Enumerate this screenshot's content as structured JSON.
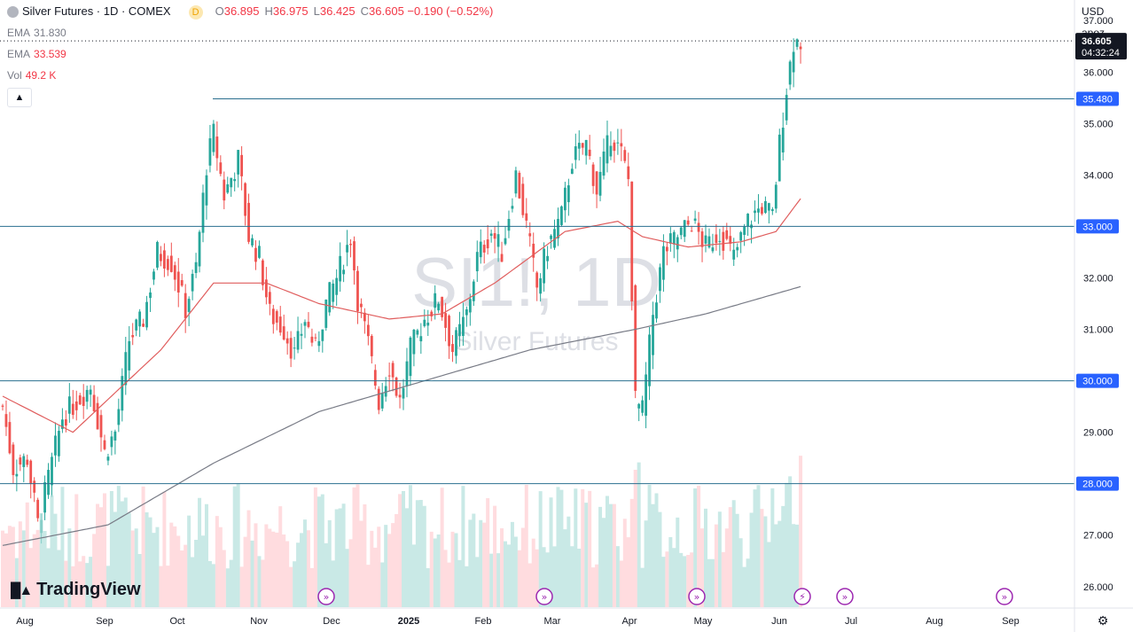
{
  "header": {
    "title": "Silver Futures · 1D · COMEX",
    "interval_badge": "D",
    "ohlc": [
      {
        "label": "O",
        "value": "36.895"
      },
      {
        "label": "H",
        "value": "36.975"
      },
      {
        "label": "L",
        "value": "36.425"
      },
      {
        "label": "C",
        "value": "36.605"
      }
    ],
    "change": "−0.190 (−0.52%)"
  },
  "indicators": [
    {
      "name": "EMA",
      "value": "31.830",
      "color": "#787b86"
    },
    {
      "name": "EMA",
      "value": "33.539",
      "color": "#f23645"
    },
    {
      "name": "Vol",
      "value": "49.2 K",
      "color": "#f23645"
    }
  ],
  "controls": {
    "currency": "USD",
    "scale_mode": "apoz",
    "collapse_icon": "chevron-up-icon"
  },
  "watermark": {
    "symbol": "SI1!, 1D",
    "name": "Silver Futures"
  },
  "logo": {
    "text": "TradingView"
  },
  "colors": {
    "up": "#26a69a",
    "down": "#ef5350",
    "volume_up": "#b2dfdb",
    "volume_down": "#ffcdd2",
    "ema_long": "#787b86",
    "ema_short": "#e05d5d",
    "level_line": "#2a6f8f",
    "badge": "#131722",
    "level_badge": "#2962ff"
  },
  "chart_data": {
    "type": "candlestick",
    "y_axis": {
      "ticks": [
        "37.000",
        "36.000",
        "35.000",
        "34.000",
        "33.000",
        "32.000",
        "31.000",
        "30.000",
        "29.000",
        "28.000",
        "27.000",
        "26.000"
      ],
      "range": [
        25.6,
        37.4
      ]
    },
    "x_axis": {
      "ticks": [
        "Aug",
        "Sep",
        "Oct",
        "Nov",
        "Dec",
        "2025",
        "Feb",
        "Mar",
        "Apr",
        "May",
        "Jun",
        "Jul",
        "Aug",
        "Sep"
      ]
    },
    "price_badge": {
      "price": "36.605",
      "countdown": "04:32:24"
    },
    "levels": [
      {
        "price": 35.48,
        "label": "35.480",
        "from": "Oct"
      },
      {
        "price": 33.0,
        "label": "33.000",
        "from": "start"
      },
      {
        "price": 30.0,
        "label": "30.000",
        "from": "start"
      },
      {
        "price": 28.0,
        "label": "28.000",
        "from": "start"
      }
    ],
    "close_anchors": [
      {
        "i": 0,
        "c": 29.5
      },
      {
        "i": 3,
        "c": 28.3
      },
      {
        "i": 7,
        "c": 28.5
      },
      {
        "i": 10,
        "c": 27.2
      },
      {
        "i": 14,
        "c": 28.4
      },
      {
        "i": 17,
        "c": 29.3
      },
      {
        "i": 21,
        "c": 29.6
      },
      {
        "i": 25,
        "c": 29.9
      },
      {
        "i": 29,
        "c": 28.6
      },
      {
        "i": 32,
        "c": 29.0
      },
      {
        "i": 36,
        "c": 30.8
      },
      {
        "i": 40,
        "c": 31.2
      },
      {
        "i": 44,
        "c": 32.5
      },
      {
        "i": 48,
        "c": 32.3
      },
      {
        "i": 52,
        "c": 31.4
      },
      {
        "i": 55,
        "c": 32.2
      },
      {
        "i": 58,
        "c": 34.2
      },
      {
        "i": 60,
        "c": 34.8
      },
      {
        "i": 63,
        "c": 33.6
      },
      {
        "i": 67,
        "c": 34.3
      },
      {
        "i": 70,
        "c": 32.8
      },
      {
        "i": 73,
        "c": 32.4
      },
      {
        "i": 76,
        "c": 31.3
      },
      {
        "i": 80,
        "c": 31.0
      },
      {
        "i": 83,
        "c": 30.5
      },
      {
        "i": 86,
        "c": 31.2
      },
      {
        "i": 89,
        "c": 30.6
      },
      {
        "i": 92,
        "c": 31.5
      },
      {
        "i": 95,
        "c": 32.0
      },
      {
        "i": 99,
        "c": 32.8
      },
      {
        "i": 101,
        "c": 31.6
      },
      {
        "i": 104,
        "c": 30.7
      },
      {
        "i": 107,
        "c": 29.6
      },
      {
        "i": 110,
        "c": 30.3
      },
      {
        "i": 113,
        "c": 29.6
      },
      {
        "i": 116,
        "c": 30.6
      },
      {
        "i": 120,
        "c": 31.2
      },
      {
        "i": 124,
        "c": 31.6
      },
      {
        "i": 128,
        "c": 30.6
      },
      {
        "i": 132,
        "c": 31.3
      },
      {
        "i": 135,
        "c": 32.4
      },
      {
        "i": 139,
        "c": 32.9
      },
      {
        "i": 142,
        "c": 32.5
      },
      {
        "i": 146,
        "c": 34.0
      },
      {
        "i": 149,
        "c": 33.0
      },
      {
        "i": 152,
        "c": 31.8
      },
      {
        "i": 155,
        "c": 32.6
      },
      {
        "i": 159,
        "c": 33.2
      },
      {
        "i": 162,
        "c": 34.3
      },
      {
        "i": 166,
        "c": 34.6
      },
      {
        "i": 169,
        "c": 33.7
      },
      {
        "i": 173,
        "c": 34.8
      },
      {
        "i": 176,
        "c": 34.4
      },
      {
        "i": 178,
        "c": 33.9
      },
      {
        "i": 180,
        "c": 29.6
      },
      {
        "i": 182,
        "c": 29.4
      },
      {
        "i": 185,
        "c": 31.3
      },
      {
        "i": 188,
        "c": 32.5
      },
      {
        "i": 192,
        "c": 32.8
      },
      {
        "i": 196,
        "c": 33.1
      },
      {
        "i": 200,
        "c": 32.6
      },
      {
        "i": 204,
        "c": 32.9
      },
      {
        "i": 208,
        "c": 32.4
      },
      {
        "i": 212,
        "c": 33.1
      },
      {
        "i": 216,
        "c": 33.4
      },
      {
        "i": 219,
        "c": 33.2
      },
      {
        "i": 221,
        "c": 34.6
      },
      {
        "i": 223,
        "c": 35.7
      },
      {
        "i": 225,
        "c": 36.6
      },
      {
        "i": 227,
        "c": 36.605
      }
    ],
    "ema_short_anchors": [
      {
        "i": 0,
        "v": 29.7
      },
      {
        "i": 20,
        "v": 29.0
      },
      {
        "i": 45,
        "v": 30.6
      },
      {
        "i": 60,
        "v": 31.9
      },
      {
        "i": 75,
        "v": 31.9
      },
      {
        "i": 90,
        "v": 31.5
      },
      {
        "i": 110,
        "v": 31.2
      },
      {
        "i": 125,
        "v": 31.3
      },
      {
        "i": 140,
        "v": 31.9
      },
      {
        "i": 160,
        "v": 32.9
      },
      {
        "i": 175,
        "v": 33.1
      },
      {
        "i": 182,
        "v": 32.8
      },
      {
        "i": 195,
        "v": 32.6
      },
      {
        "i": 210,
        "v": 32.7
      },
      {
        "i": 220,
        "v": 32.9
      },
      {
        "i": 227,
        "v": 33.539
      }
    ],
    "ema_long_anchors": [
      {
        "i": 0,
        "v": 26.8
      },
      {
        "i": 30,
        "v": 27.2
      },
      {
        "i": 60,
        "v": 28.4
      },
      {
        "i": 90,
        "v": 29.4
      },
      {
        "i": 120,
        "v": 30.0
      },
      {
        "i": 150,
        "v": 30.6
      },
      {
        "i": 180,
        "v": 31.0
      },
      {
        "i": 200,
        "v": 31.3
      },
      {
        "i": 227,
        "v": 31.83
      }
    ],
    "event_markers": [
      {
        "icon": "play-arrow-icon",
        "at": "Dec"
      },
      {
        "icon": "play-arrow-icon",
        "at": "Mar"
      },
      {
        "icon": "play-arrow-icon",
        "at": "May"
      },
      {
        "icon": "lightning-icon",
        "at": "Jun"
      },
      {
        "icon": "play-arrow-icon",
        "at": "Jun"
      },
      {
        "icon": "play-arrow-icon",
        "at": "Sep"
      }
    ]
  }
}
